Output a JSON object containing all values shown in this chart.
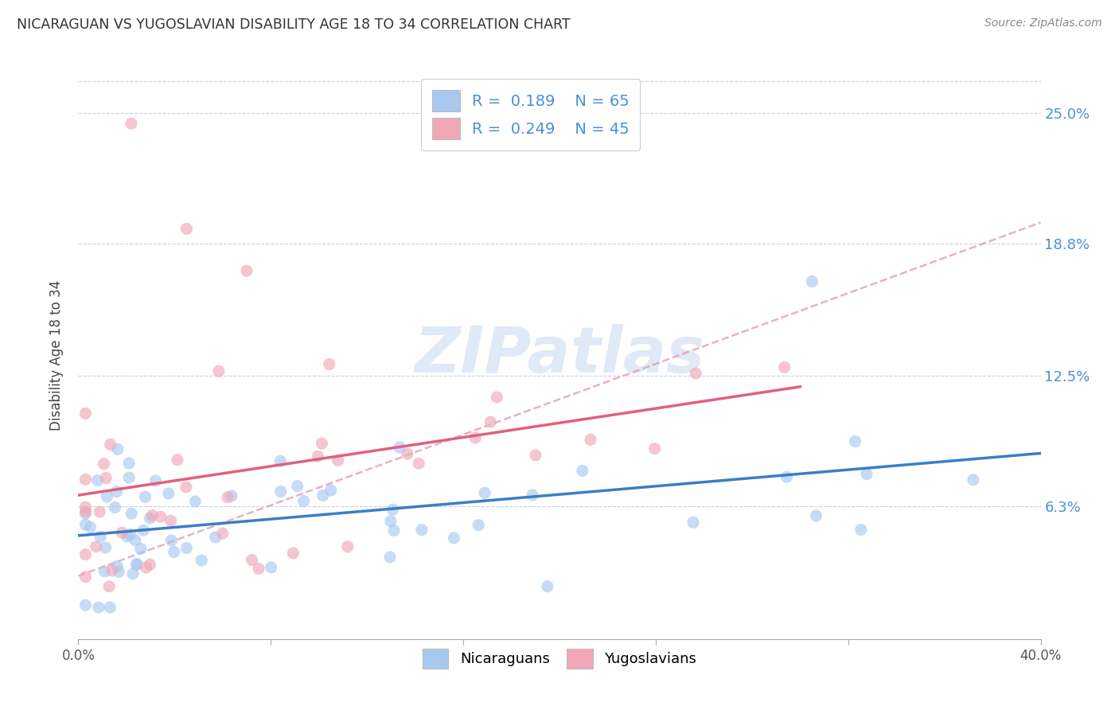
{
  "title": "NICARAGUAN VS YUGOSLAVIAN DISABILITY AGE 18 TO 34 CORRELATION CHART",
  "source": "Source: ZipAtlas.com",
  "ylabel": "Disability Age 18 to 34",
  "ytick_labels": [
    "6.3%",
    "12.5%",
    "18.8%",
    "25.0%"
  ],
  "ytick_values": [
    0.063,
    0.125,
    0.188,
    0.25
  ],
  "xmin": 0.0,
  "xmax": 0.4,
  "ymin": 0.0,
  "ymax": 0.27,
  "watermark_text": "ZIPatlas",
  "legend_nicaraguans": "Nicaraguans",
  "legend_yugoslavians": "Yugoslavians",
  "R_nicaraguans": "0.189",
  "N_nicaraguans": "65",
  "R_yugoslavians": "0.249",
  "N_yugoslavians": "45",
  "color_blue": "#a8c8f0",
  "color_pink": "#f0a8b8",
  "color_blue_line": "#3a7ec8",
  "color_pink_line": "#e06080",
  "color_pink_dash": "#e090a8",
  "color_grid": "#c8d0e0",
  "color_right_axis": "#4a90d9",
  "blue_intercept": 0.055,
  "blue_slope": 0.045,
  "pink_intercept": 0.06,
  "pink_slope": 0.18,
  "dash_intercept": 0.03,
  "dash_slope": 0.42
}
